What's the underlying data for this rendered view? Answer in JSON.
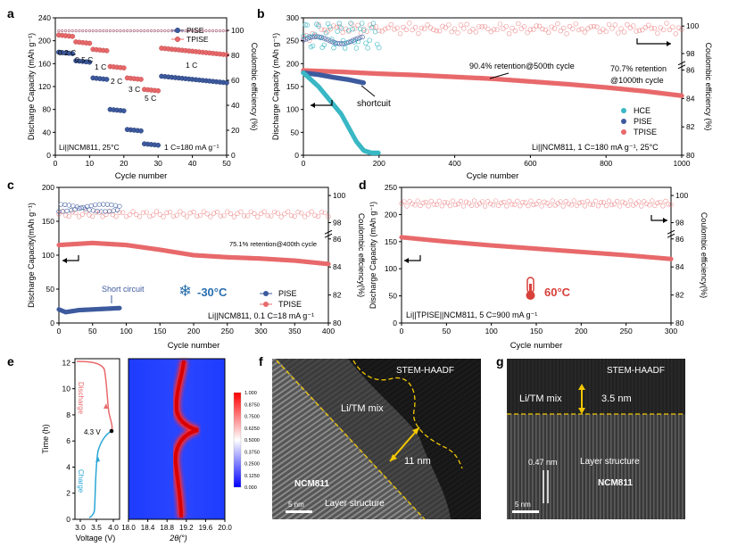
{
  "panel_letters": [
    "a",
    "b",
    "c",
    "d",
    "e",
    "f",
    "g"
  ],
  "colors": {
    "pise": "#3d5a9e",
    "tpise": "#e8696b",
    "hce": "#39b7c4",
    "charge": "#2aa6d6",
    "discharge": "#e8696b"
  },
  "chart_data": [
    {
      "id": "a",
      "type": "scatter",
      "xlabel": "Cycle number",
      "ylabel": "Discharge Capacity (mAh g⁻¹)",
      "y2label": "Coulombic efficiency (%)",
      "xlim": [
        0,
        50
      ],
      "ylim": [
        0,
        240
      ],
      "y2lim": [
        0,
        110
      ],
      "xticks": [
        0,
        10,
        20,
        30,
        40,
        50
      ],
      "yticks": [
        0,
        40,
        80,
        120,
        160,
        200,
        240
      ],
      "y2ticks": [
        0,
        20,
        40,
        60,
        80,
        100
      ],
      "legend": [
        "PISE",
        "TPISE"
      ],
      "rate_labels": [
        "0.2 C",
        "0.5 C",
        "1 C",
        "2 C",
        "3 C",
        "5 C",
        "1 C"
      ],
      "annotations": [
        "Li||NCM811, 25°C",
        "1 C=180 mA g⁻¹"
      ],
      "series": [
        {
          "name": "PISE",
          "steps": [
            [
              1,
              5,
              180
            ],
            [
              6,
              10,
              165
            ],
            [
              11,
              15,
              135
            ],
            [
              16,
              20,
              80
            ],
            [
              21,
              25,
              45
            ],
            [
              26,
              30,
              20
            ],
            [
              31,
              50,
              138
            ]
          ]
        },
        {
          "name": "TPISE",
          "steps": [
            [
              1,
              5,
              210
            ],
            [
              6,
              10,
              198
            ],
            [
              11,
              15,
              185
            ],
            [
              16,
              20,
              155
            ],
            [
              21,
              25,
              135
            ],
            [
              26,
              30,
              115
            ],
            [
              31,
              50,
              187
            ]
          ]
        }
      ]
    },
    {
      "id": "b",
      "type": "scatter",
      "xlabel": "Cycle number",
      "ylabel": "Discharge Capacity (mAh g⁻¹)",
      "y2label": "Coulombic efficiency (%)",
      "xlim": [
        0,
        1000
      ],
      "ylim": [
        0,
        300
      ],
      "y2lim": [
        80,
        100
      ],
      "xticks": [
        0,
        200,
        400,
        600,
        800,
        1000
      ],
      "yticks": [
        0,
        50,
        100,
        150,
        200,
        250,
        300
      ],
      "y2ticks": [
        80,
        82,
        84,
        86,
        98,
        100
      ],
      "legend": [
        "HCE",
        "PISE",
        "TPISE"
      ],
      "annotations": [
        "90.4% retention@500th cycle",
        "70.7% retention",
        "@1000th cycle",
        "shortcuit",
        "Li||NCM811, 1 C=180 mA g⁻¹, 25°C"
      ],
      "series": [
        {
          "name": "TPISE",
          "x": [
            0,
            100,
            200,
            300,
            400,
            500,
            600,
            700,
            800,
            900,
            1000
          ],
          "y": [
            185,
            182,
            178,
            175,
            171,
            167,
            161,
            155,
            148,
            140,
            130
          ]
        },
        {
          "name": "PISE",
          "x": [
            0,
            40,
            80,
            120,
            160
          ],
          "y": [
            180,
            176,
            170,
            165,
            158
          ]
        },
        {
          "name": "HCE",
          "x": [
            0,
            40,
            60,
            80,
            100,
            120,
            140,
            160,
            180,
            200
          ],
          "y": [
            180,
            150,
            130,
            110,
            90,
            60,
            30,
            10,
            5,
            5
          ]
        }
      ]
    },
    {
      "id": "c",
      "type": "scatter",
      "xlabel": "Cycle number",
      "ylabel": "Discharge Capacity(mAh g⁻¹)",
      "y2label": "Coulombic effciency(%)",
      "xlim": [
        0,
        400
      ],
      "ylim": [
        0,
        200
      ],
      "y2lim": [
        80,
        100
      ],
      "xticks": [
        0,
        50,
        100,
        150,
        200,
        250,
        300,
        350,
        400
      ],
      "yticks": [
        0,
        50,
        100,
        150,
        200
      ],
      "y2ticks": [
        80,
        82,
        84,
        86,
        98,
        100
      ],
      "legend": [
        "PISE",
        "TPISE"
      ],
      "annotations": [
        "75.1% retention@400th cycle",
        "Short circuit",
        "-30°C",
        "Li||NCM811, 0.1 C=18 mA g⁻¹"
      ],
      "series": [
        {
          "name": "TPISE",
          "x": [
            0,
            50,
            100,
            150,
            200,
            250,
            300,
            350,
            400
          ],
          "y": [
            115,
            118,
            115,
            108,
            100,
            97,
            95,
            92,
            87
          ]
        },
        {
          "name": "PISE",
          "x": [
            0,
            10,
            30,
            50,
            70,
            90
          ],
          "y": [
            20,
            16,
            19,
            20,
            21,
            22
          ]
        }
      ]
    },
    {
      "id": "d",
      "type": "scatter",
      "xlabel": "Cycle number",
      "ylabel": "Discharge Capacity (mAh g⁻¹)",
      "y2label": "Coulombic efficiency(%)",
      "xlim": [
        0,
        300
      ],
      "ylim": [
        0,
        250
      ],
      "y2lim": [
        80,
        100
      ],
      "xticks": [
        0,
        50,
        100,
        150,
        200,
        250,
        300
      ],
      "yticks": [
        0,
        50,
        100,
        150,
        200,
        250
      ],
      "y2ticks": [
        80,
        82,
        84,
        86,
        98,
        100
      ],
      "annotations": [
        "60°C",
        "Li||TPISE||NCM811, 5 C=900 mA g⁻¹"
      ],
      "series": [
        {
          "name": "TPISE",
          "x": [
            0,
            50,
            100,
            150,
            200,
            250,
            300
          ],
          "y": [
            158,
            150,
            143,
            137,
            131,
            125,
            118
          ]
        }
      ]
    },
    {
      "id": "e",
      "type": "heatmap",
      "xlabel": "Voltage (V)",
      "x2label": "2θ(°)",
      "ylabel": "Time (h)",
      "xticks": [
        "3.0",
        "3.5",
        "4.0"
      ],
      "x2ticks": [
        "18.0",
        "18.4",
        "18.8",
        "19.2",
        "19.6",
        "20.0"
      ],
      "yticks": [
        0,
        2,
        4,
        6,
        8,
        10,
        12
      ],
      "ylim": [
        0,
        12.3
      ],
      "colorbar": [
        "1.000",
        "0.8750",
        "0.7500",
        "0.6250",
        "0.5000",
        "0.3750",
        "0.2500",
        "0.1250",
        "0.000"
      ],
      "labels": [
        "Discharge",
        "Charge",
        "4.3 V"
      ]
    }
  ],
  "image_panels": {
    "f": {
      "labels": [
        "STEM-HAADF",
        "Li/TM mix",
        "11 nm",
        "NCM811",
        "Layer structure",
        "5 nm"
      ]
    },
    "g": {
      "labels": [
        "STEM-HAADF",
        "Li/TM mix",
        "3.5 nm",
        "0.47 nm",
        "Layer structure",
        "NCM811",
        "5 nm"
      ]
    }
  }
}
